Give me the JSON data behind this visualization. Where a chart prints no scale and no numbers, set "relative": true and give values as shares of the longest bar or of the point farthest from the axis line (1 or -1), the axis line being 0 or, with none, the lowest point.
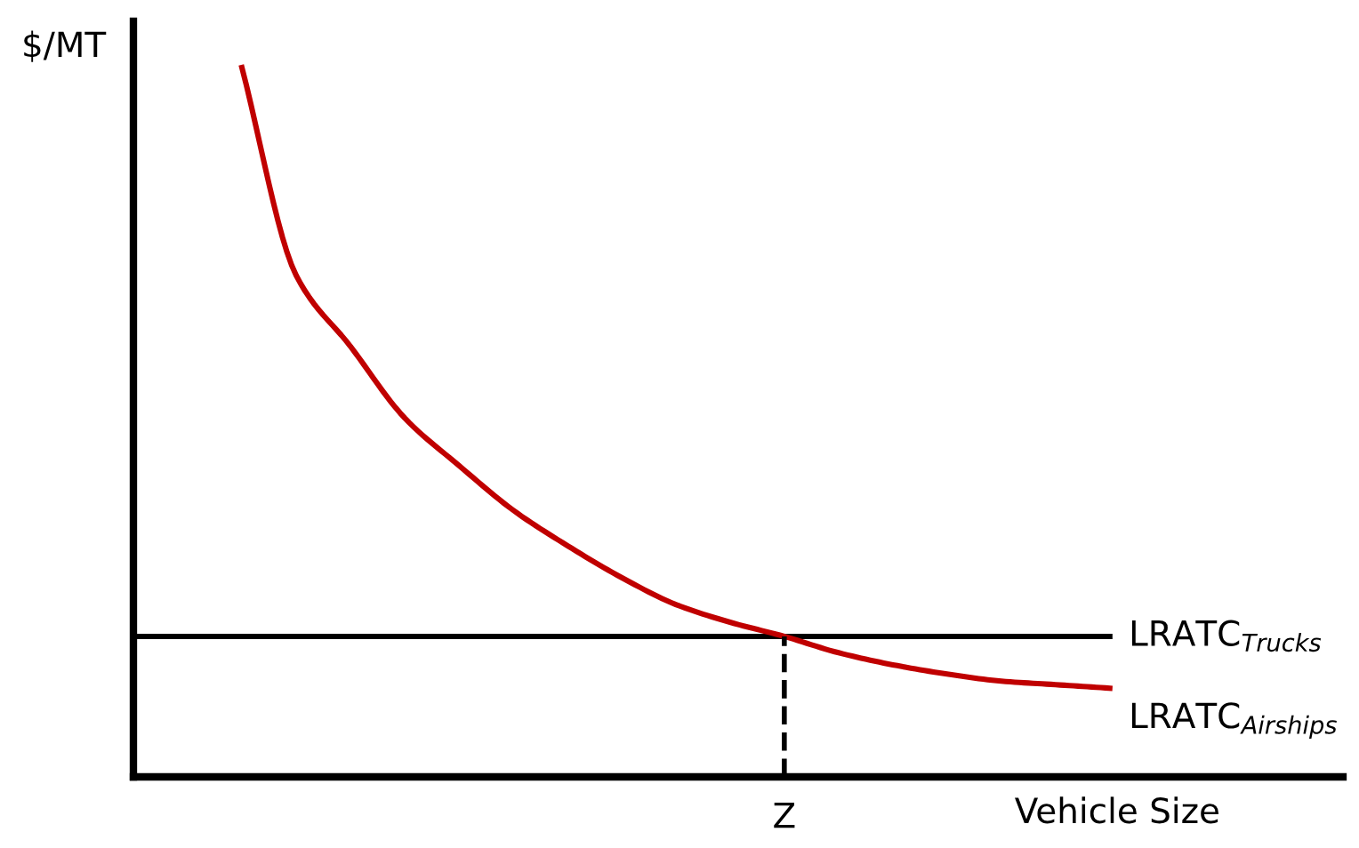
{
  "chart_data": {
    "type": "line",
    "relative": true,
    "ylabel": "$/MT",
    "xlabel": "Vehicle Size",
    "legend": false,
    "annotations": [
      "Z"
    ],
    "marker": "none",
    "line_style": "solid",
    "categories": [
      null,
      null,
      null,
      null,
      null,
      null,
      null,
      null,
      null,
      null,
      null,
      null,
      null,
      null,
      null,
      null,
      null,
      null,
      null
    ],
    "series": [
      {
        "name": "LRATC$_{Trucks}$",
        "color": "#000000",
        "values": [
          0.198,
          0.198,
          0.198,
          0.198,
          0.198,
          0.198,
          0.198,
          0.198,
          0.198,
          0.198,
          0.198,
          0.198,
          0.198,
          0.198,
          0.198,
          0.198,
          0.198,
          0.198,
          0.198
        ]
      },
      {
        "name": "LRATC$_{Airships}$",
        "color": "#c00000",
        "values": [
          null,
          null,
          1.0,
          0.707,
          0.607,
          0.506,
          0.439,
          0.376,
          0.326,
          0.281,
          0.243,
          0.218,
          0.198,
          0.175,
          0.158,
          0.145,
          0.135,
          0.13,
          0.125
        ]
      }
    ]
  }
}
